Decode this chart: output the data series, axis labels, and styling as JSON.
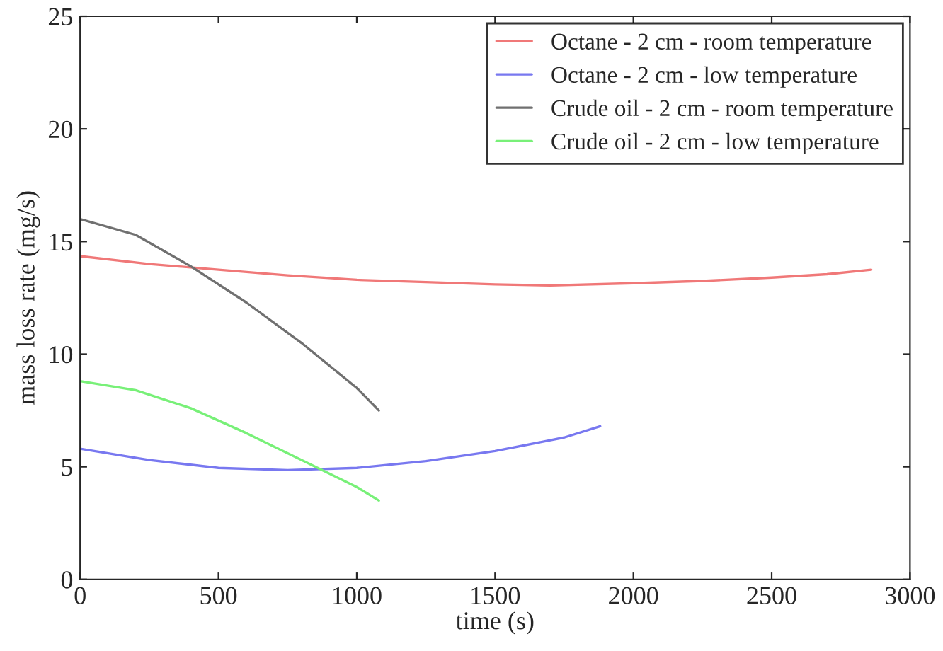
{
  "chart_data": {
    "type": "line",
    "xlabel": "time (s)",
    "ylabel": "mass loss rate (mg/s)",
    "xlim": [
      0,
      3000
    ],
    "xticks": [
      0,
      500,
      1000,
      1500,
      2000,
      2500,
      3000
    ],
    "ylim": [
      0,
      25
    ],
    "yticks": [
      0,
      5,
      10,
      15,
      20,
      25
    ],
    "grid": false,
    "legend": "top right",
    "marker": "none",
    "line_style": "solid",
    "series": [
      {
        "name": "Octane - 2 cm - room temperature",
        "color": "#f07878",
        "x": [
          0,
          250,
          500,
          750,
          1000,
          1250,
          1500,
          1700,
          2000,
          2250,
          2500,
          2700,
          2860
        ],
        "values": [
          14.35,
          14.0,
          13.75,
          13.5,
          13.3,
          13.2,
          13.1,
          13.05,
          13.15,
          13.25,
          13.4,
          13.55,
          13.75
        ]
      },
      {
        "name": "Octane - 2 cm - low temperature",
        "color": "#7878f0",
        "x": [
          0,
          250,
          500,
          750,
          1000,
          1250,
          1500,
          1750,
          1880
        ],
        "values": [
          5.8,
          5.3,
          4.95,
          4.85,
          4.95,
          5.25,
          5.7,
          6.3,
          6.8
        ]
      },
      {
        "name": "Crude oil - 2 cm - room temperature",
        "color": "#707070",
        "x": [
          0,
          200,
          400,
          600,
          800,
          1000,
          1080
        ],
        "values": [
          16.0,
          15.3,
          13.9,
          12.3,
          10.5,
          8.5,
          7.5
        ]
      },
      {
        "name": "Crude oil - 2 cm - low temperature",
        "color": "#78f078",
        "x": [
          0,
          200,
          400,
          600,
          800,
          1000,
          1080
        ],
        "values": [
          8.8,
          8.4,
          7.6,
          6.5,
          5.3,
          4.1,
          3.5
        ]
      }
    ]
  }
}
